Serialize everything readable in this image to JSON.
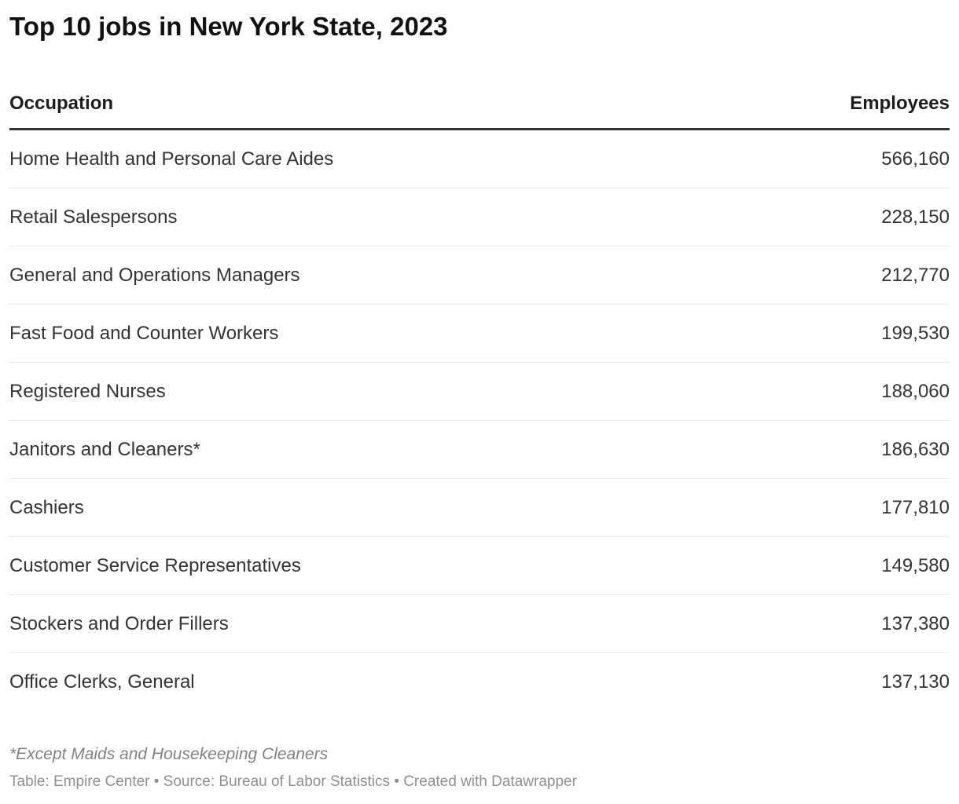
{
  "title": "Top 10 jobs in New York State, 2023",
  "table": {
    "columns": [
      "Occupation",
      "Employees"
    ],
    "rows": [
      {
        "occupation": "Home Health and Personal Care Aides",
        "employees": "566,160"
      },
      {
        "occupation": "Retail Salespersons",
        "employees": "228,150"
      },
      {
        "occupation": "General and Operations Managers",
        "employees": "212,770"
      },
      {
        "occupation": "Fast Food and Counter Workers",
        "employees": "199,530"
      },
      {
        "occupation": "Registered Nurses",
        "employees": "188,060"
      },
      {
        "occupation": "Janitors and Cleaners*",
        "employees": "186,630"
      },
      {
        "occupation": "Cashiers",
        "employees": "177,810"
      },
      {
        "occupation": "Customer Service Representatives",
        "employees": "149,580"
      },
      {
        "occupation": "Stockers and Order Fillers",
        "employees": "137,380"
      },
      {
        "occupation": "Office Clerks, General",
        "employees": "137,130"
      }
    ]
  },
  "footnote": "*Except Maids and Housekeeping Cleaners",
  "attribution": "Table: Empire Center • Source: Bureau of Labor Statistics • Created with Datawrapper",
  "colors": {
    "title_text": "#121212",
    "body_text": "#333333",
    "header_rule": "#333333",
    "row_divider": "#e9e9e9",
    "footnote_text": "#828282",
    "attribution_text": "#8f8f8f"
  },
  "chart_data": {
    "type": "table",
    "title": "Top 10 jobs in New York State, 2023",
    "columns": [
      "Occupation",
      "Employees"
    ],
    "rows": [
      [
        "Home Health and Personal Care Aides",
        566160
      ],
      [
        "Retail Salespersons",
        228150
      ],
      [
        "General and Operations Managers",
        212770
      ],
      [
        "Fast Food and Counter Workers",
        199530
      ],
      [
        "Registered Nurses",
        188060
      ],
      [
        "Janitors and Cleaners*",
        186630
      ],
      [
        "Cashiers",
        177810
      ],
      [
        "Customer Service Representatives",
        149580
      ],
      [
        "Stockers and Order Fillers",
        137380
      ],
      [
        "Office Clerks, General",
        137130
      ]
    ],
    "footnote": "*Except Maids and Housekeeping Cleaners",
    "source": "Bureau of Labor Statistics",
    "table_credit": "Empire Center",
    "created_with": "Datawrapper"
  }
}
